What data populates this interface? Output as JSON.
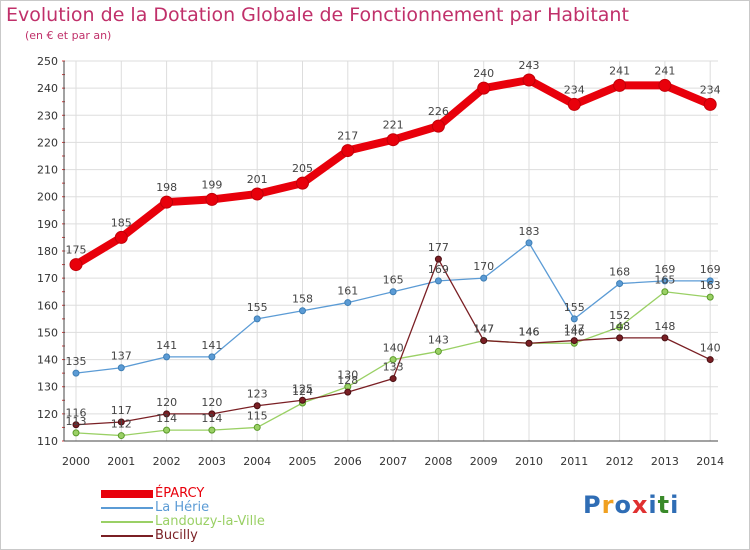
{
  "title": "Evolution de la Dotation Globale de Fonctionnement par Habitant",
  "subtitle": "(en € et par an)",
  "chart_data": {
    "type": "line",
    "title": "Evolution de la Dotation Globale de Fonctionnement par Habitant",
    "subtitle": "(en € et par an)",
    "x": [
      2000,
      2001,
      2002,
      2003,
      2004,
      2005,
      2006,
      2007,
      2008,
      2009,
      2010,
      2011,
      2012,
      2013,
      2014
    ],
    "ylim": [
      110,
      250
    ],
    "yticks": [
      110,
      120,
      130,
      140,
      150,
      160,
      170,
      180,
      190,
      200,
      210,
      220,
      230,
      240,
      250
    ],
    "grid": true,
    "legend_position": "bottom-left",
    "series": [
      {
        "name": "ÉPARCY",
        "color": "#e8000b",
        "values": [
          175,
          185,
          198,
          199,
          201,
          205,
          217,
          221,
          226,
          240,
          243,
          234,
          241,
          241,
          234
        ]
      },
      {
        "name": "La Hérie",
        "color": "#5b9bd5",
        "values": [
          135,
          137,
          141,
          141,
          155,
          158,
          161,
          165,
          169,
          170,
          183,
          155,
          168,
          169,
          169
        ]
      },
      {
        "name": "Landouzy-la-Ville",
        "color": "#9ad065",
        "values": [
          113,
          112,
          114,
          114,
          115,
          124,
          130,
          140,
          143,
          147,
          146,
          146,
          152,
          165,
          163
        ]
      },
      {
        "name": "Bucilly",
        "color": "#7a1f24",
        "values": [
          116,
          117,
          120,
          120,
          123,
          125,
          128,
          133,
          177,
          147,
          146,
          147,
          148,
          148,
          140
        ]
      }
    ]
  },
  "logo": {
    "text": "Proxiti",
    "letter_colors": [
      "#2f6db5",
      "#f0a020",
      "#2f6db5",
      "#e03030",
      "#2f6db5",
      "#3a8a2a",
      "#2f6db5"
    ]
  }
}
